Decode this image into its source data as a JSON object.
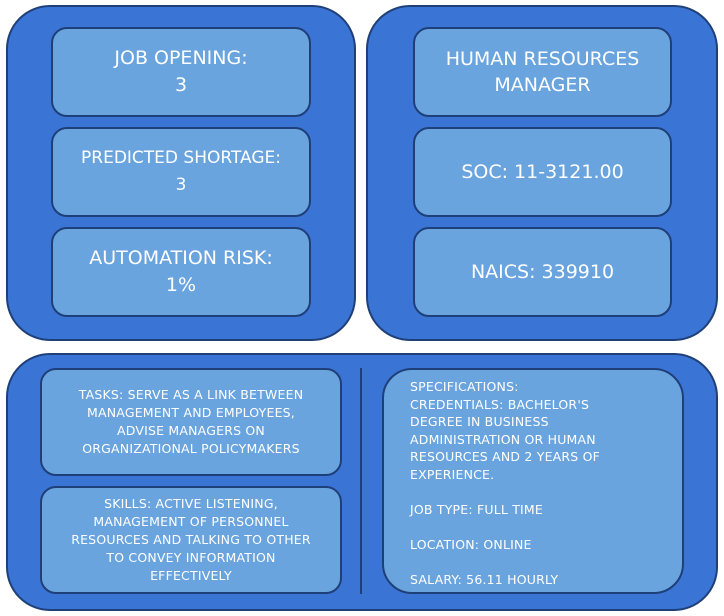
{
  "left_panel": {
    "job_opening": {
      "label": "JOB OPENING:",
      "value": "3"
    },
    "predicted_shortage": {
      "label": "PREDICTED SHORTAGE:",
      "value": "3"
    },
    "automation_risk": {
      "label": "AUTOMATION RISK:",
      "value": "1%"
    }
  },
  "right_panel": {
    "job_title_line1": "HUMAN RESOURCES",
    "job_title_line2": "MANAGER",
    "soc": "SOC: 11-3121.00",
    "naics": "NAICS: 339910"
  },
  "bottom_panel": {
    "tasks_line1": "TASKS:   SERVE AS A LINK BETWEEN",
    "tasks_line2": "MANAGEMENT AND EMPLOYEES,",
    "tasks_line3": "ADVISE MANAGERS ON",
    "tasks_line4": "ORGANIZATIONAL POLICYMAKERS",
    "skills_line1": "SKILLS: ACTIVE LISTENING,",
    "skills_line2": "MANAGEMENT OF PERSONNEL",
    "skills_line3": "RESOURCES AND TALKING TO OTHER",
    "skills_line4": "TO CONVEY INFORMATION",
    "skills_line5": "EFFECTIVELY",
    "specifications": {
      "heading": "SPECIFICATIONS:",
      "credentials_line1": "CREDENTIALS: BACHELOR'S",
      "credentials_line2": "DEGREE IN BUSINESS",
      "credentials_line3": "ADMINISTRATION OR HUMAN",
      "credentials_line4": "RESOURCES AND 2 YEARS OF",
      "credentials_line5": "EXPERIENCE.",
      "job_type": "JOB TYPE: FULL TIME",
      "location": "LOCATION: ONLINE",
      "salary": "SALARY: 56.11 HOURLY"
    }
  },
  "colors": {
    "panel": "#3a75d6",
    "box": "#6aa4de",
    "border": "#1f3f78",
    "text": "#ffffff"
  }
}
